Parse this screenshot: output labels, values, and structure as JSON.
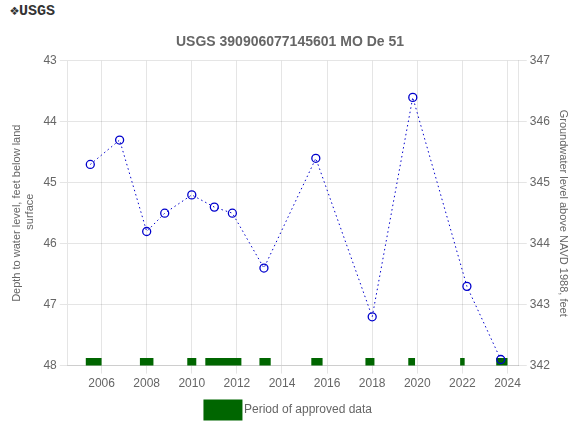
{
  "chart_data": {
    "type": "scatter",
    "title": "USGS 390906077145601 MO De 51",
    "annotations": [
      "❖USGS"
    ],
    "ylabel": "Depth to water level, feet below land\n surface",
    "y2label": "Groundwater level above NAVD 1988, feet",
    "xlim": [
      2004.5,
      2024.5
    ],
    "xticks": [
      2006,
      2008,
      2010,
      2012,
      2014,
      2016,
      2018,
      2020,
      2022,
      2024
    ],
    "ylim": [
      48.0,
      43.0
    ],
    "yticks": [
      43.0,
      44.0,
      45.0,
      46.0,
      47.0,
      48.0
    ],
    "y2lim": [
      342.0,
      347.0
    ],
    "y2ticks": [
      342.0,
      343.0,
      344.0,
      345.0,
      346.0,
      347.0
    ],
    "grid": true,
    "legend": "bottom",
    "series": [
      {
        "x": [
          2005.5,
          2006.8,
          2008.0,
          2008.8,
          2010.0,
          2011.0,
          2011.8,
          2013.2,
          2015.5,
          2018.0,
          2019.8,
          2022.2,
          2023.7
        ],
        "values": [
          44.7,
          44.3,
          45.8,
          45.5,
          45.2,
          45.4,
          45.5,
          46.4,
          44.6,
          47.2,
          43.6,
          46.7,
          47.9
        ],
        "color": "#0000cc",
        "marker": "circle",
        "line_style": "dotted"
      },
      {
        "name": "Period of approved data",
        "type": "bar",
        "orientation": "horizontal",
        "color": "#006600",
        "x": [
          [
            2005.3,
            2006.0
          ],
          [
            2007.7,
            2008.3
          ],
          [
            2009.8,
            2010.2
          ],
          [
            2010.6,
            2012.2
          ],
          [
            2013.0,
            2013.5
          ],
          [
            2015.3,
            2015.8
          ],
          [
            2017.7,
            2018.1
          ],
          [
            2019.6,
            2019.9
          ],
          [
            2021.9,
            2022.1
          ],
          [
            2023.5,
            2024.0
          ]
        ],
        "values": [
          47.95,
          47.95,
          47.95,
          47.95,
          47.95,
          47.95,
          47.95,
          47.95,
          47.95,
          47.95
        ]
      }
    ]
  }
}
